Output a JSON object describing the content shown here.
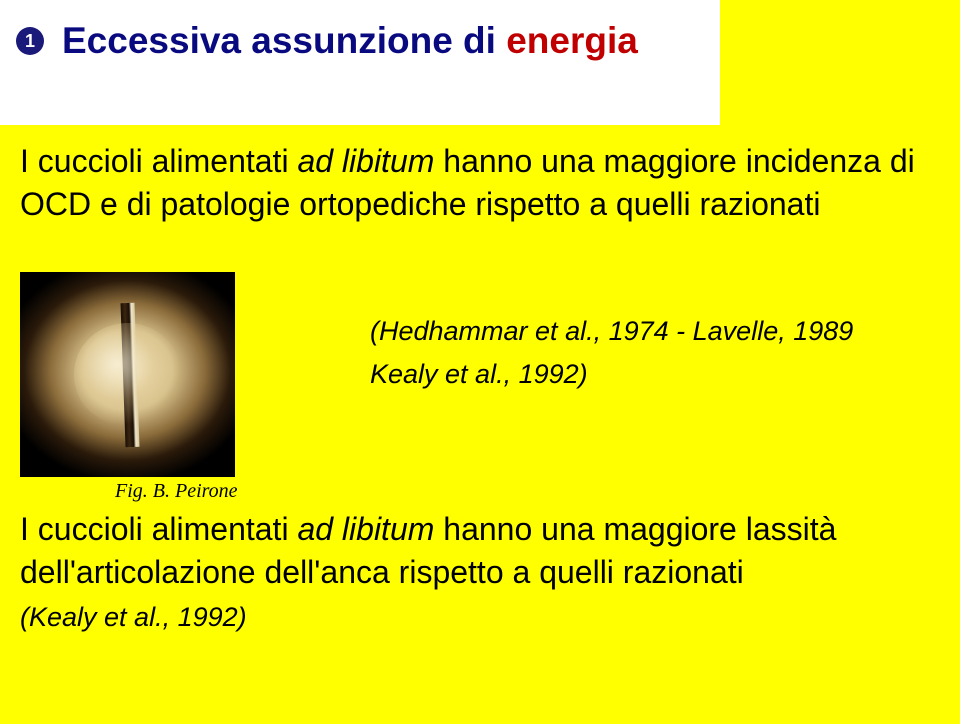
{
  "colors": {
    "background": "#ffff00",
    "white_box": "#ffffff",
    "title_blue": "#0a0a80",
    "title_red": "#c00000",
    "bullet_bg": "#1a1a7a",
    "text": "#000000"
  },
  "bullet": "1",
  "title_part1": "Eccessiva assunzione di ",
  "title_part2": "energia",
  "paragraph1_a": "I cuccioli alimentati ",
  "paragraph1_b": "ad libitum",
  "paragraph1_c": " hanno una maggiore incidenza di OCD e di patologie ortopediche rispetto a quelli razionati",
  "citation1_line1": "(Hedhammar et al., 1974 - Lavelle, 1989",
  "citation1_line2": "Kealy et al., 1992)",
  "photo_caption": "Fig. B. Peirone",
  "paragraph2_a": "I cuccioli alimentati ",
  "paragraph2_b": "ad libitum",
  "paragraph2_c": " hanno una maggiore lassità dell'articolazione dell'anca rispetto a quelli razionati",
  "citation2": "(Kealy et al., 1992)"
}
